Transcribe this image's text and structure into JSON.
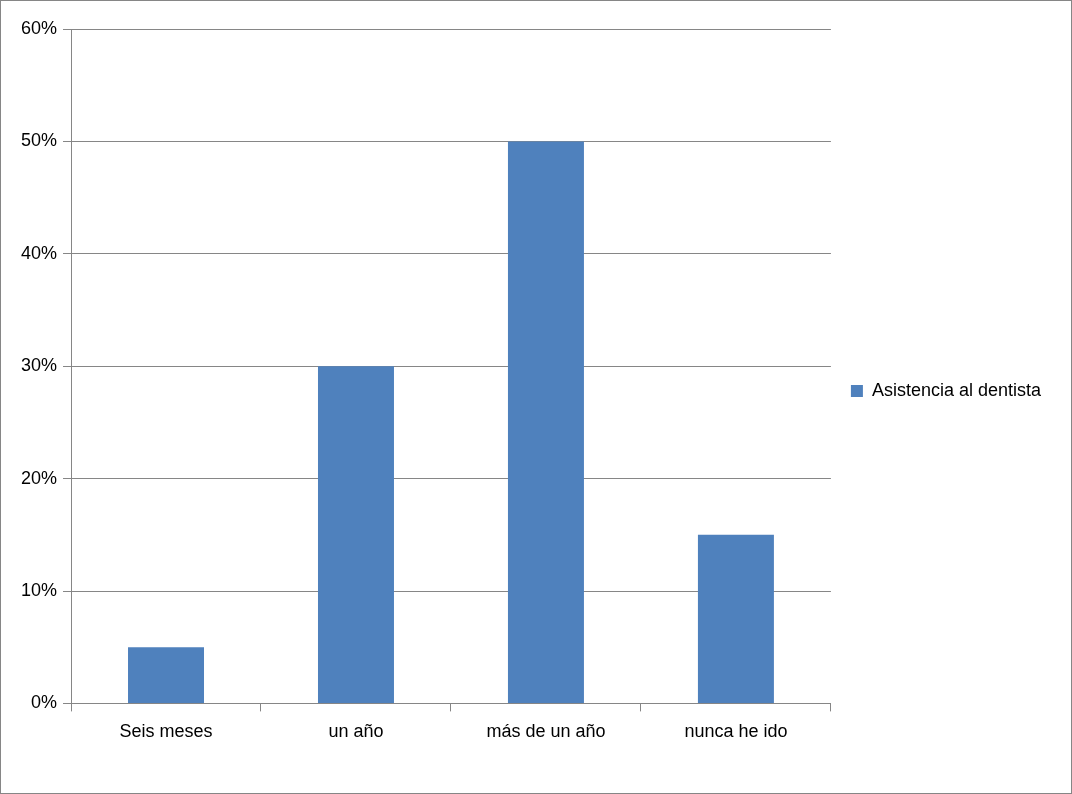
{
  "chart_data": {
    "type": "bar",
    "categories": [
      "Seis meses",
      "un año",
      "más de un año",
      "nunca he ido"
    ],
    "series": [
      {
        "name": "Asistencia al dentista",
        "color": "#4f81bd",
        "values": [
          5,
          30,
          50,
          15
        ]
      }
    ],
    "ylim": [
      0,
      60
    ],
    "yticks": [
      {
        "value": 0,
        "label": "0%"
      },
      {
        "value": 10,
        "label": "10%"
      },
      {
        "value": 20,
        "label": "20%"
      },
      {
        "value": 30,
        "label": "30%"
      },
      {
        "value": 40,
        "label": "40%"
      },
      {
        "value": 50,
        "label": "50%"
      },
      {
        "value": 60,
        "label": "60%"
      }
    ],
    "grid": "y",
    "legend": "right"
  }
}
